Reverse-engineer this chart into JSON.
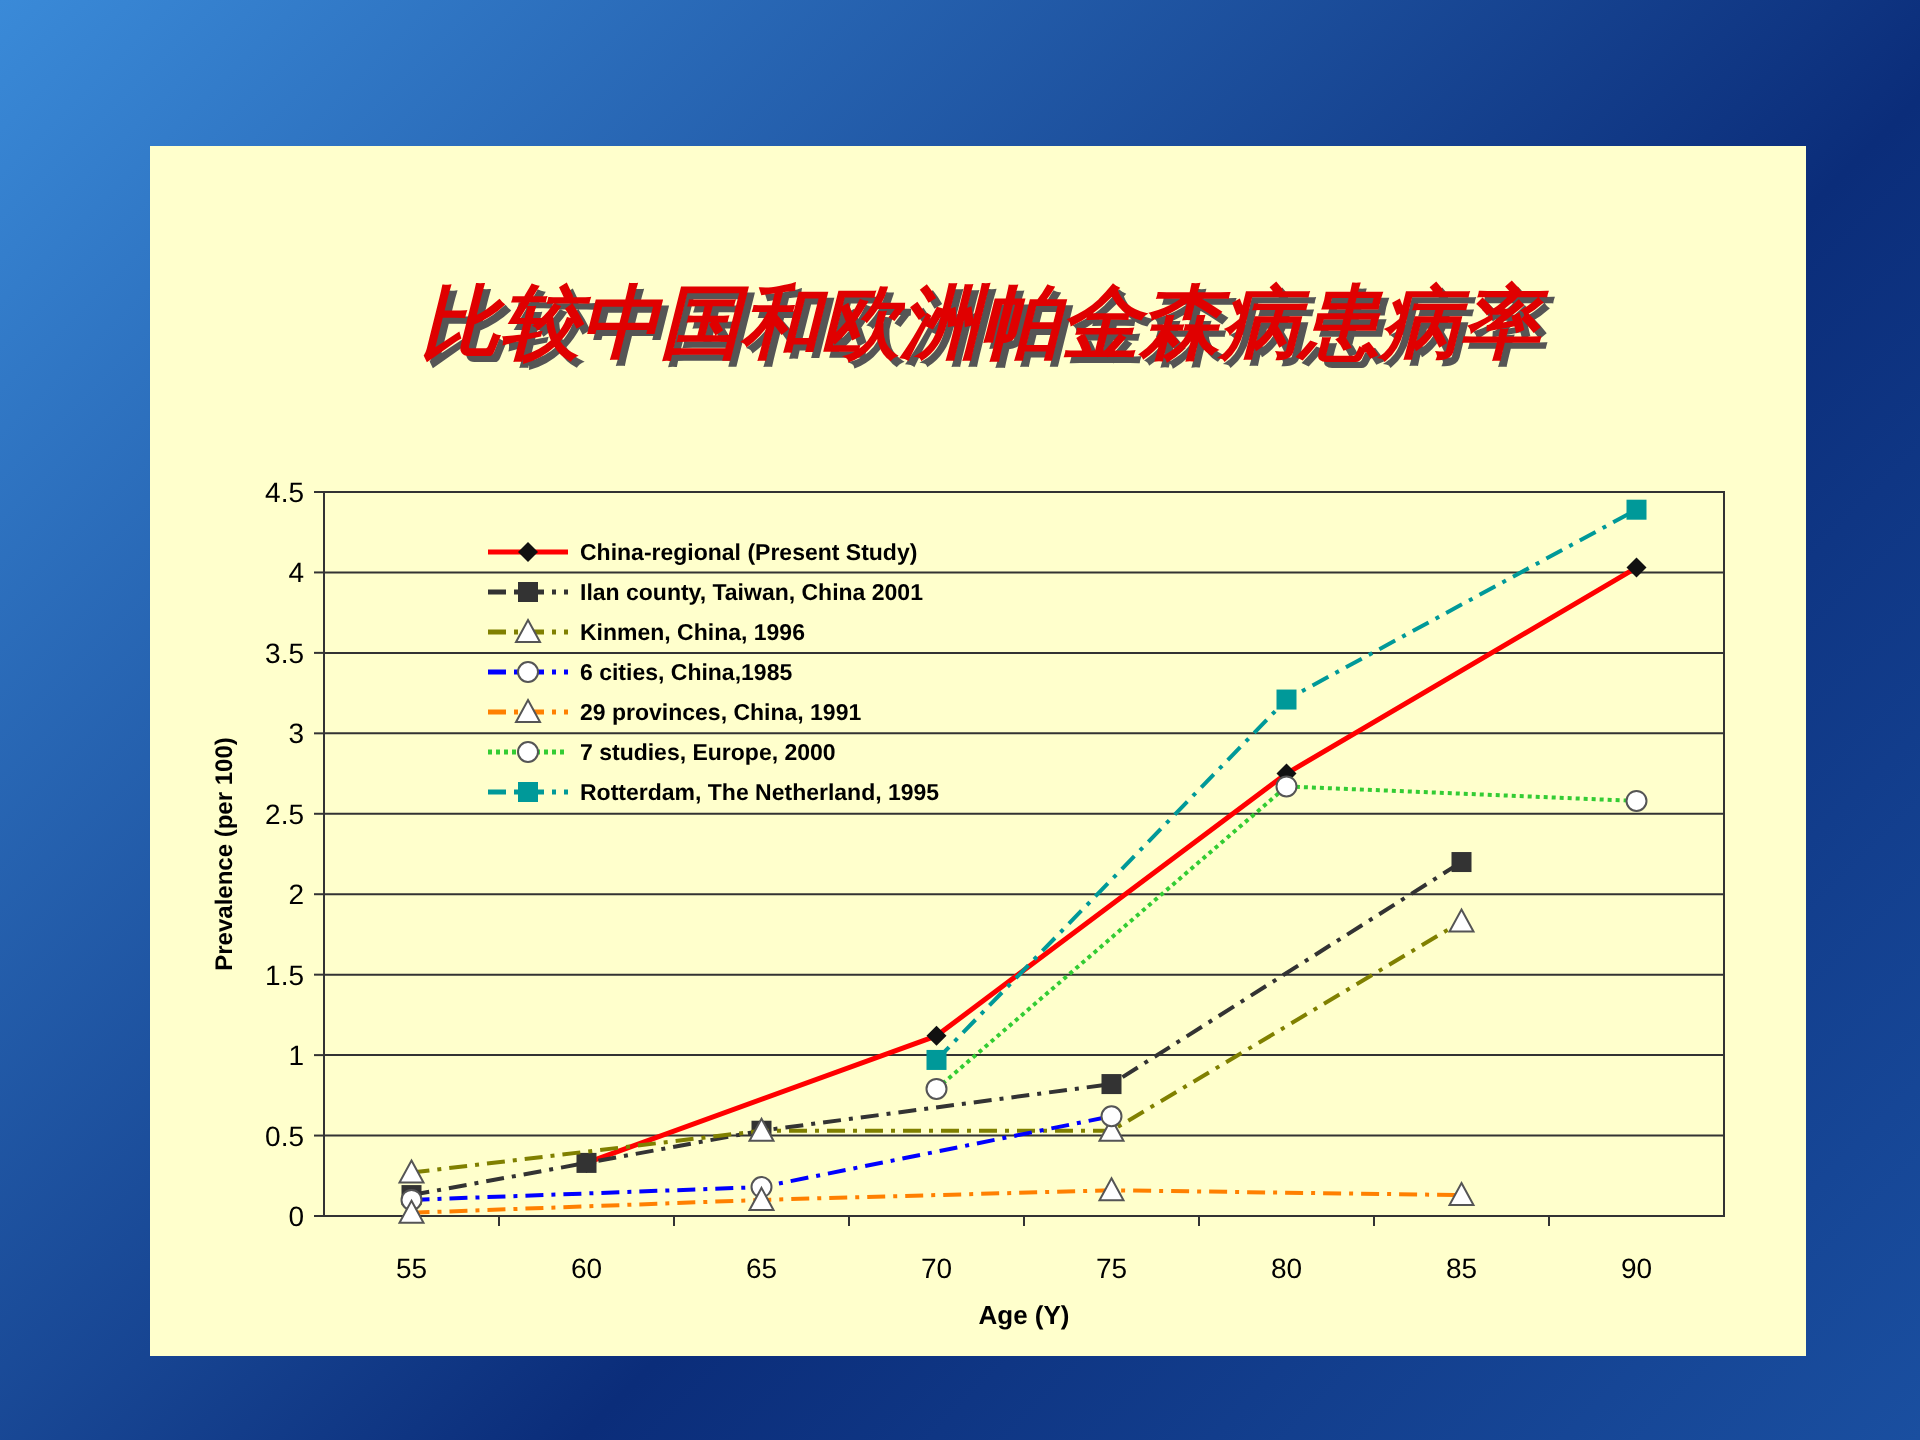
{
  "chart_data": {
    "type": "line",
    "title": "比较中国和欧洲帕金森病患病率",
    "xlabel": "Age (Y)",
    "ylabel": "Prevalence (per 100)",
    "categories": [
      "55",
      "60",
      "65",
      "70",
      "75",
      "80",
      "85",
      "90"
    ],
    "ylim": [
      0,
      4.5
    ],
    "yticks": [
      0,
      0.5,
      1,
      1.5,
      2,
      2.5,
      3,
      3.5,
      4,
      4.5
    ],
    "grid": "y",
    "legend": "top left",
    "series": [
      {
        "name": "China-regional (Present Study)",
        "color": "#ff0000",
        "line_style": "solid",
        "marker": "diamond",
        "values": [
          null,
          0.33,
          null,
          1.12,
          null,
          2.75,
          null,
          4.03
        ]
      },
      {
        "name": "Ilan county, Taiwan, China 2001",
        "color": "#333333",
        "line_style": "dashed",
        "marker": "square",
        "values": [
          0.13,
          0.33,
          0.53,
          null,
          0.82,
          null,
          2.2,
          null
        ]
      },
      {
        "name": "Kinmen, China, 1996",
        "color": "#808000",
        "line_style": "dashed",
        "marker": "triangle",
        "values": [
          0.27,
          null,
          0.53,
          null,
          0.53,
          null,
          1.83,
          null
        ]
      },
      {
        "name": "6 cities, China,1985",
        "color": "#0000ff",
        "line_style": "dashed",
        "marker": "circle",
        "values": [
          0.1,
          null,
          0.18,
          null,
          0.62,
          null,
          null,
          null
        ]
      },
      {
        "name": "29 provinces, China, 1991",
        "color": "#ff8000",
        "line_style": "dashed",
        "marker": "triangle",
        "values": [
          0.02,
          null,
          0.1,
          null,
          0.16,
          null,
          0.13,
          null
        ]
      },
      {
        "name": "7 studies, Europe, 2000",
        "color": "#33cc33",
        "line_style": "dotted",
        "marker": "circle",
        "values": [
          null,
          null,
          null,
          0.79,
          null,
          2.67,
          null,
          2.58
        ]
      },
      {
        "name": "Rotterdam, The Netherland, 1995",
        "color": "#009999",
        "line_style": "dashed",
        "marker": "square",
        "values": [
          null,
          null,
          null,
          0.97,
          null,
          3.21,
          null,
          4.39
        ]
      }
    ]
  }
}
